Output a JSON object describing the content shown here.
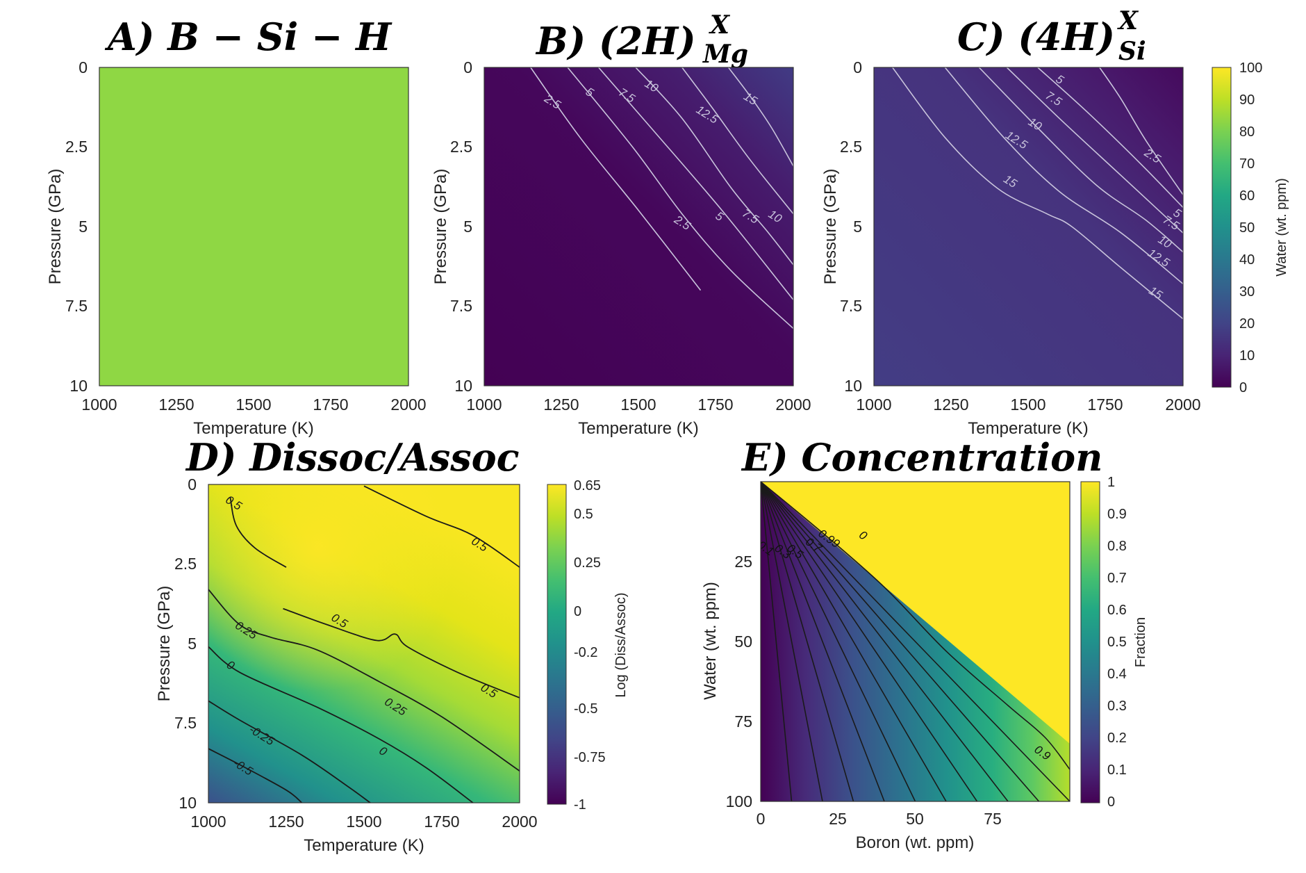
{
  "chart_data": [
    {
      "id": "A",
      "type": "heatmap",
      "title_letter": "A)",
      "title": "B − Si − H",
      "xlabel": "Temperature (K)",
      "ylabel": "Pressure (GPa)",
      "xlim": [
        1000,
        2000
      ],
      "ylim": [
        0,
        10
      ],
      "xticks": [
        "1000",
        "1250",
        "1500",
        "1750",
        "2000"
      ],
      "yticks": [
        "0",
        "2.5",
        "5",
        "7.5",
        "10"
      ],
      "uniform_value_ppm": 75,
      "fill_color": "#8fd744",
      "contours": []
    },
    {
      "id": "B",
      "type": "heatmap",
      "title_letter": "B)",
      "title": "(2H)",
      "title_sup": "X",
      "title_sub": "Mg",
      "xlabel": "Temperature (K)",
      "ylabel": "Pressure (GPa)",
      "xlim": [
        1000,
        2000
      ],
      "ylim": [
        0,
        10
      ],
      "xticks": [
        "1000",
        "1250",
        "1500",
        "1750",
        "2000"
      ],
      "yticks": [
        "0",
        "2.5",
        "5",
        "7.5",
        "10"
      ],
      "contour_color": "#c9c4dc",
      "contours": [
        {
          "level": "2.5",
          "points": [
            [
              1150,
              0
            ],
            [
              1310,
              2.2
            ],
            [
              1500,
              4.5
            ],
            [
              1700,
              7.0
            ]
          ],
          "labels": [
            [
              1220,
              1.1
            ],
            [
              1640,
              4.9
            ]
          ]
        },
        {
          "level": "5",
          "points": [
            [
              1270,
              0
            ],
            [
              1480,
              2.5
            ],
            [
              1640,
              4.6
            ],
            [
              1800,
              6.4
            ],
            [
              2000,
              8.2
            ]
          ],
          "labels": [
            [
              1340,
              0.8
            ],
            [
              1760,
              4.7
            ]
          ]
        },
        {
          "level": "7.5",
          "points": [
            [
              1370,
              0
            ],
            [
              1540,
              1.9
            ],
            [
              1770,
              4.5
            ],
            [
              2000,
              7.3
            ]
          ],
          "labels": [
            [
              1460,
              0.9
            ],
            [
              1860,
              4.7
            ]
          ]
        },
        {
          "level": "10",
          "points": [
            [
              1490,
              0
            ],
            [
              1640,
              1.6
            ],
            [
              1800,
              3.8
            ],
            [
              1920,
              5.2
            ],
            [
              2000,
              6.2
            ]
          ],
          "labels": [
            [
              1540,
              0.6
            ],
            [
              1940,
              4.7
            ]
          ]
        },
        {
          "level": "12.5",
          "points": [
            [
              1640,
              0
            ],
            [
              1740,
              1.3
            ],
            [
              1860,
              2.9
            ],
            [
              2000,
              4.6
            ]
          ],
          "labels": [
            [
              1720,
              1.5
            ]
          ]
        },
        {
          "level": "15",
          "points": [
            [
              1790,
              0
            ],
            [
              1860,
              0.9
            ],
            [
              1930,
              1.9
            ],
            [
              2000,
              3.1
            ]
          ],
          "labels": [
            [
              1860,
              1.0
            ]
          ]
        }
      ]
    },
    {
      "id": "C",
      "type": "heatmap",
      "title_letter": "C)",
      "title": "(4H)",
      "title_sup": "X",
      "title_sub": "Si",
      "xlabel": "Temperature (K)",
      "ylabel": "Pressure (GPa)",
      "xlim": [
        1000,
        2000
      ],
      "ylim": [
        0,
        10
      ],
      "xticks": [
        "1000",
        "1250",
        "1500",
        "1750",
        "2000"
      ],
      "yticks": [
        "0",
        "2.5",
        "5",
        "7.5",
        "10"
      ],
      "contour_color": "#c9c4dc",
      "contours": [
        {
          "level": "15",
          "points": [
            [
              1060,
              0
            ],
            [
              1230,
              2.2
            ],
            [
              1400,
              3.8
            ],
            [
              1560,
              4.6
            ],
            [
              1640,
              5.0
            ],
            [
              1800,
              6.3
            ],
            [
              2000,
              7.9
            ]
          ],
          "labels": [
            [
              1440,
              3.6
            ],
            [
              1910,
              7.1
            ]
          ]
        },
        {
          "level": "12.5",
          "points": [
            [
              1230,
              0
            ],
            [
              1420,
              2.2
            ],
            [
              1600,
              3.9
            ],
            [
              1800,
              5.2
            ],
            [
              2000,
              6.8
            ]
          ],
          "labels": [
            [
              1460,
              2.3
            ],
            [
              1920,
              6.0
            ]
          ]
        },
        {
          "level": "10",
          "points": [
            [
              1340,
              0
            ],
            [
              1530,
              1.9
            ],
            [
              1720,
              3.7
            ],
            [
              1880,
              4.8
            ],
            [
              2000,
              5.8
            ]
          ],
          "labels": [
            [
              1520,
              1.8
            ],
            [
              1940,
              5.5
            ]
          ]
        },
        {
          "level": "7.5",
          "points": [
            [
              1430,
              0
            ],
            [
              1600,
              1.6
            ],
            [
              1800,
              3.4
            ],
            [
              2000,
              5.2
            ]
          ],
          "labels": [
            [
              1580,
              1.0
            ],
            [
              1960,
              4.9
            ]
          ]
        },
        {
          "level": "5",
          "points": [
            [
              1530,
              0
            ],
            [
              1690,
              1.4
            ],
            [
              1860,
              3.0
            ],
            [
              2000,
              4.4
            ]
          ],
          "labels": [
            [
              1600,
              0.4
            ],
            [
              1980,
              4.6
            ]
          ]
        },
        {
          "level": "2.5",
          "points": [
            [
              1730,
              0
            ],
            [
              1800,
              1.0
            ],
            [
              1880,
              2.3
            ],
            [
              2000,
              4.0
            ]
          ],
          "labels": [
            [
              1900,
              2.8
            ]
          ]
        }
      ]
    },
    {
      "id": "D",
      "type": "heatmap",
      "title_letter": "D)",
      "title": "Dissoc/Assoc",
      "xlabel": "Temperature (K)",
      "ylabel": "Pressure (GPa)",
      "xlim": [
        1000,
        2000
      ],
      "ylim": [
        0,
        10
      ],
      "xticks": [
        "1000",
        "1250",
        "1500",
        "1750",
        "2000"
      ],
      "yticks": [
        "0",
        "2.5",
        "5",
        "7.5",
        "10"
      ],
      "clim": [
        -1,
        0.65
      ],
      "contour_color": "#1a1a1a",
      "contours": [
        {
          "level": "0.5",
          "points": [
            [
              1070,
              0.4
            ],
            [
              1090,
              1.3
            ],
            [
              1150,
              2.0
            ],
            [
              1250,
              2.6
            ]
          ],
          "labels": [
            [
              1080,
              0.6
            ]
          ]
        },
        {
          "level": "0.5",
          "points": [
            [
              1500,
              0.05
            ],
            [
              1700,
              1.0
            ],
            [
              1850,
              1.6
            ],
            [
              2000,
              2.6
            ]
          ],
          "labels": [
            [
              1870,
              1.9
            ]
          ]
        },
        {
          "level": "0.5",
          "points": [
            [
              1240,
              3.9
            ],
            [
              1380,
              4.4
            ],
            [
              1540,
              4.9
            ],
            [
              1600,
              4.7
            ],
            [
              1640,
              5.1
            ],
            [
              1800,
              5.9
            ],
            [
              2000,
              6.7
            ]
          ],
          "labels": [
            [
              1420,
              4.3
            ],
            [
              1900,
              6.5
            ]
          ]
        },
        {
          "level": "0.25",
          "points": [
            [
              1000,
              3.3
            ],
            [
              1100,
              4.4
            ],
            [
              1200,
              4.8
            ],
            [
              1350,
              5.2
            ],
            [
              1550,
              6.2
            ],
            [
              1750,
              7.3
            ],
            [
              2000,
              9.0
            ]
          ],
          "labels": [
            [
              1120,
              4.6
            ],
            [
              1600,
              7.0
            ]
          ]
        },
        {
          "level": "0",
          "points": [
            [
              1000,
              5.1
            ],
            [
              1100,
              5.9
            ],
            [
              1350,
              7.0
            ],
            [
              1550,
              8.0
            ],
            [
              1700,
              8.9
            ],
            [
              1850,
              10.0
            ]
          ],
          "labels": [
            [
              1070,
              5.7
            ],
            [
              1560,
              8.4
            ]
          ]
        },
        {
          "level": "-0.25",
          "points": [
            [
              1000,
              6.8
            ],
            [
              1100,
              7.4
            ],
            [
              1300,
              8.5
            ],
            [
              1450,
              9.5
            ],
            [
              1520,
              10.0
            ]
          ],
          "labels": [
            [
              1170,
              7.9
            ]
          ]
        },
        {
          "level": "-0.5",
          "points": [
            [
              1000,
              8.3
            ],
            [
              1100,
              8.8
            ],
            [
              1250,
              9.6
            ],
            [
              1300,
              10.0
            ]
          ],
          "labels": [
            [
              1110,
              8.9
            ]
          ]
        }
      ]
    },
    {
      "id": "E",
      "type": "heatmap",
      "title_letter": "E)",
      "title": "Concentration",
      "xlabel": "Boron (wt. ppm)",
      "ylabel": "Water (wt. ppm)",
      "xlim": [
        0,
        100
      ],
      "ylim": [
        0,
        100
      ],
      "xticks": [
        "0",
        "25",
        "50",
        "75"
      ],
      "yticks": [
        "25",
        "50",
        "75",
        "100"
      ],
      "clim": [
        0,
        1
      ],
      "contour_color": "#1a1a1a",
      "contour_levels": [
        "0.1",
        "0.2",
        "0.3",
        "0.4",
        "0.5",
        "0.6",
        "0.7",
        "0.8",
        "0.9",
        "0.99"
      ],
      "labels": [
        {
          "text": "0.1",
          "x": 1.5,
          "y": 21
        },
        {
          "text": "0.3",
          "x": 7,
          "y": 22
        },
        {
          "text": "0.5",
          "x": 11,
          "y": 22
        },
        {
          "text": "0.7",
          "x": 17,
          "y": 20
        },
        {
          "text": "0.99",
          "x": 22,
          "y": 18
        },
        {
          "text": "0",
          "x": 33,
          "y": 17
        },
        {
          "text": "0.9",
          "x": 91,
          "y": 85
        }
      ]
    }
  ],
  "colorbars": [
    {
      "id": "water",
      "label": "Water (wt. ppm)",
      "ticks": [
        "0",
        "10",
        "20",
        "30",
        "40",
        "50",
        "60",
        "70",
        "80",
        "90",
        "100"
      ]
    },
    {
      "id": "logdiss",
      "label": "Log (Diss/Assoc)",
      "ticks": [
        "0.65",
        "0.5",
        "0.25",
        "0",
        "-0.2",
        "-0.5",
        "-0.75",
        "-1"
      ]
    },
    {
      "id": "fraction",
      "label": "Fraction",
      "ticks": [
        "1",
        "0.9",
        "0.8",
        "0.7",
        "0.6",
        "0.5",
        "0.4",
        "0.3",
        "0.2",
        "0.1",
        "0"
      ]
    }
  ]
}
